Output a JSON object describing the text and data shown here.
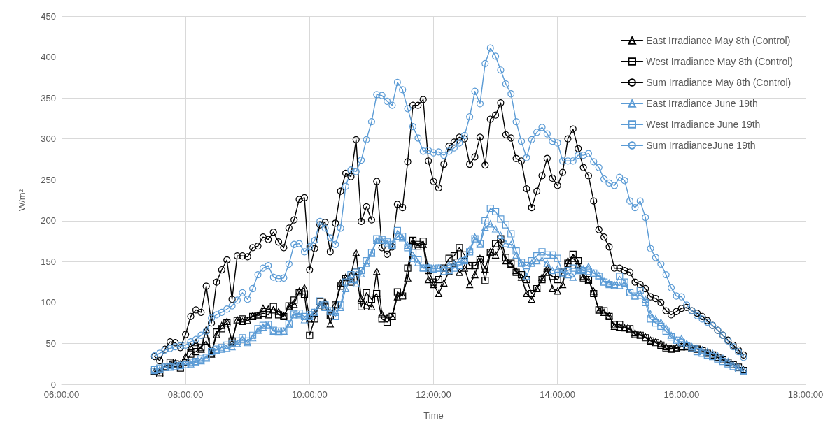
{
  "chart_data": {
    "type": "line",
    "xlabel": "Time",
    "ylabel": "W/m²",
    "xlim": [
      6,
      18
    ],
    "xticks": [
      {
        "value": 6,
        "label": "06:00:00"
      },
      {
        "value": 8,
        "label": "08:00:00"
      },
      {
        "value": 10,
        "label": "10:00:00"
      },
      {
        "value": 12,
        "label": "12:00:00"
      },
      {
        "value": 14,
        "label": "14:00:00"
      },
      {
        "value": 16,
        "label": "16:00:00"
      },
      {
        "value": 18,
        "label": "18:00:00"
      }
    ],
    "ylim": [
      0,
      450
    ],
    "yticks": [
      0,
      50,
      100,
      150,
      200,
      250,
      300,
      350,
      400,
      450
    ],
    "grid": true,
    "legend": "top right",
    "line_style": "solid",
    "x": [
      7.5,
      7.583,
      7.667,
      7.75,
      7.833,
      7.917,
      8,
      8.083,
      8.167,
      8.25,
      8.333,
      8.417,
      8.5,
      8.583,
      8.667,
      8.75,
      8.833,
      8.917,
      9,
      9.083,
      9.167,
      9.25,
      9.333,
      9.417,
      9.5,
      9.583,
      9.667,
      9.75,
      9.833,
      9.917,
      10,
      10.083,
      10.167,
      10.25,
      10.333,
      10.417,
      10.5,
      10.583,
      10.667,
      10.75,
      10.833,
      10.917,
      11,
      11.083,
      11.167,
      11.25,
      11.333,
      11.417,
      11.5,
      11.583,
      11.667,
      11.75,
      11.833,
      11.917,
      12,
      12.083,
      12.167,
      12.25,
      12.333,
      12.417,
      12.5,
      12.583,
      12.667,
      12.75,
      12.833,
      12.917,
      13,
      13.083,
      13.167,
      13.25,
      13.333,
      13.417,
      13.5,
      13.583,
      13.667,
      13.75,
      13.833,
      13.917,
      14,
      14.083,
      14.167,
      14.25,
      14.333,
      14.417,
      14.5,
      14.583,
      14.667,
      14.75,
      14.833,
      14.917,
      15,
      15.083,
      15.167,
      15.25,
      15.333,
      15.417,
      15.5,
      15.583,
      15.667,
      15.75,
      15.833,
      15.917,
      16,
      16.083,
      16.167,
      16.25,
      16.333,
      16.417,
      16.5,
      16.583,
      16.667,
      16.75,
      16.833,
      16.917,
      17
    ],
    "series": [
      {
        "name": "East Irradiance May 8th (Control)",
        "color": "#000000",
        "marker": "triangle",
        "values": [
          16,
          15,
          21,
          25,
          26,
          25,
          34,
          46,
          51,
          43,
          67,
          37,
          61,
          72,
          77,
          51,
          79,
          77,
          78,
          84,
          85,
          93,
          92,
          91,
          89,
          84,
          95,
          98,
          114,
          118,
          80,
          87,
          97,
          101,
          74,
          98,
          124,
          131,
          134,
          161,
          105,
          97,
          95,
          138,
          86,
          81,
          83,
          107,
          109,
          130,
          175,
          169,
          171,
          128,
          122,
          111,
          124,
          138,
          148,
          137,
          142,
          122,
          134,
          154,
          141,
          162,
          158,
          169,
          151,
          147,
          139,
          131,
          111,
          104,
          117,
          131,
          142,
          117,
          114,
          122,
          151,
          154,
          147,
          132,
          127,
          114,
          90,
          88,
          84,
          71,
          70,
          69,
          67,
          63,
          61,
          58,
          54,
          52,
          50,
          46,
          44,
          45,
          46,
          47,
          45,
          44,
          42,
          39,
          36,
          33,
          30,
          27,
          24,
          21,
          18
        ]
      },
      {
        "name": "West Irradiance May 8th (Control)",
        "color": "#000000",
        "marker": "square",
        "values": [
          16,
          13,
          22,
          27,
          25,
          20,
          27,
          37,
          40,
          45,
          53,
          38,
          64,
          68,
          75,
          53,
          78,
          80,
          78,
          83,
          84,
          87,
          85,
          95,
          85,
          83,
          96,
          103,
          112,
          110,
          60,
          80,
          101,
          95,
          84,
          97,
          120,
          129,
          125,
          138,
          95,
          112,
          104,
          111,
          80,
          76,
          83,
          113,
          108,
          142,
          176,
          171,
          175,
          139,
          125,
          128,
          142,
          154,
          157,
          167,
          158,
          145,
          145,
          152,
          127,
          161,
          172,
          178,
          155,
          148,
          137,
          134,
          128,
          111,
          117,
          128,
          137,
          132,
          128,
          137,
          148,
          159,
          151,
          130,
          128,
          111,
          91,
          90,
          83,
          73,
          73,
          70,
          68,
          61,
          60,
          57,
          53,
          51,
          48,
          44,
          43,
          44,
          46,
          46,
          44,
          43,
          41,
          38,
          36,
          33,
          30,
          27,
          24,
          21,
          17
        ]
      },
      {
        "name": "Sum Irradiance May 8th (Control)",
        "color": "#000000",
        "marker": "circle",
        "values": [
          34,
          29,
          43,
          52,
          51,
          45,
          61,
          83,
          91,
          88,
          120,
          75,
          125,
          140,
          152,
          104,
          157,
          157,
          156,
          167,
          169,
          180,
          177,
          186,
          174,
          167,
          191,
          201,
          226,
          228,
          140,
          166,
          195,
          198,
          162,
          197,
          236,
          258,
          254,
          299,
          199,
          217,
          201,
          248,
          167,
          159,
          168,
          220,
          216,
          272,
          341,
          341,
          348,
          273,
          248,
          240,
          269,
          291,
          296,
          302,
          300,
          269,
          278,
          302,
          268,
          324,
          329,
          344,
          305,
          301,
          276,
          273,
          239,
          216,
          236,
          255,
          276,
          252,
          243,
          259,
          300,
          312,
          288,
          265,
          255,
          224,
          189,
          180,
          168,
          142,
          142,
          139,
          137,
          125,
          122,
          117,
          107,
          105,
          100,
          90,
          85,
          89,
          93,
          94,
          90,
          87,
          83,
          78,
          72,
          66,
          60,
          54,
          48,
          42,
          36
        ]
      },
      {
        "name": "East Irradiance June 19th",
        "color": "#5b9bd5",
        "marker": "triangle",
        "values": [
          17,
          18,
          21,
          23,
          24,
          24,
          24,
          25,
          27,
          29,
          32,
          41,
          42,
          43,
          44,
          46,
          50,
          55,
          51,
          57,
          66,
          70,
          72,
          65,
          64,
          65,
          73,
          85,
          85,
          79,
          83,
          88,
          97,
          94,
          89,
          88,
          94,
          117,
          128,
          123,
          135,
          148,
          160,
          176,
          176,
          172,
          170,
          181,
          179,
          170,
          154,
          149,
          143,
          144,
          142,
          142,
          142,
          146,
          147,
          150,
          153,
          165,
          180,
          171,
          192,
          196,
          190,
          182,
          172,
          171,
          158,
          148,
          132,
          148,
          151,
          152,
          148,
          139,
          141,
          136,
          134,
          131,
          139,
          141,
          144,
          136,
          133,
          126,
          124,
          122,
          121,
          124,
          112,
          108,
          109,
          104,
          86,
          80,
          76,
          69,
          60,
          54,
          56,
          50,
          46,
          44,
          42,
          40,
          38,
          35,
          32,
          28,
          24,
          21,
          17
        ]
      },
      {
        "name": "West Irradiance June 19th",
        "color": "#5b9bd5",
        "marker": "square",
        "values": [
          18,
          20,
          21,
          21,
          22,
          23,
          24,
          27,
          28,
          31,
          33,
          40,
          43,
          45,
          48,
          50,
          53,
          57,
          53,
          60,
          68,
          72,
          73,
          66,
          65,
          65,
          74,
          86,
          87,
          83,
          85,
          88,
          102,
          97,
          90,
          83,
          97,
          125,
          134,
          137,
          139,
          151,
          161,
          178,
          177,
          174,
          171,
          188,
          181,
          167,
          161,
          152,
          142,
          142,
          141,
          142,
          138,
          139,
          142,
          145,
          151,
          162,
          178,
          172,
          200,
          215,
          211,
          202,
          195,
          184,
          163,
          149,
          145,
          151,
          157,
          162,
          158,
          158,
          154,
          137,
          139,
          142,
          141,
          139,
          138,
          136,
          132,
          125,
          122,
          121,
          132,
          125,
          112,
          108,
          115,
          100,
          80,
          75,
          71,
          65,
          58,
          54,
          51,
          47,
          44,
          40,
          38,
          36,
          34,
          31,
          28,
          25,
          22,
          19,
          16
        ]
      },
      {
        "name": "Sum IrradianceJune 19th",
        "color": "#5b9bd5",
        "marker": "circle",
        "values": [
          35,
          38,
          42,
          44,
          46,
          47,
          48,
          52,
          55,
          60,
          65,
          81,
          85,
          88,
          92,
          96,
          103,
          112,
          104,
          117,
          134,
          142,
          145,
          131,
          129,
          130,
          147,
          171,
          172,
          162,
          168,
          176,
          199,
          191,
          179,
          171,
          191,
          242,
          262,
          260,
          274,
          299,
          321,
          354,
          353,
          346,
          341,
          369,
          360,
          337,
          315,
          301,
          285,
          286,
          283,
          284,
          280,
          285,
          289,
          295,
          304,
          327,
          358,
          343,
          392,
          411,
          401,
          384,
          367,
          355,
          321,
          297,
          277,
          299,
          308,
          314,
          306,
          297,
          295,
          273,
          273,
          273,
          280,
          280,
          282,
          272,
          265,
          251,
          246,
          243,
          253,
          249,
          224,
          216,
          224,
          204,
          166,
          155,
          147,
          134,
          118,
          108,
          107,
          97,
          90,
          84,
          80,
          76,
          72,
          66,
          60,
          53,
          46,
          40,
          33
        ]
      }
    ]
  }
}
